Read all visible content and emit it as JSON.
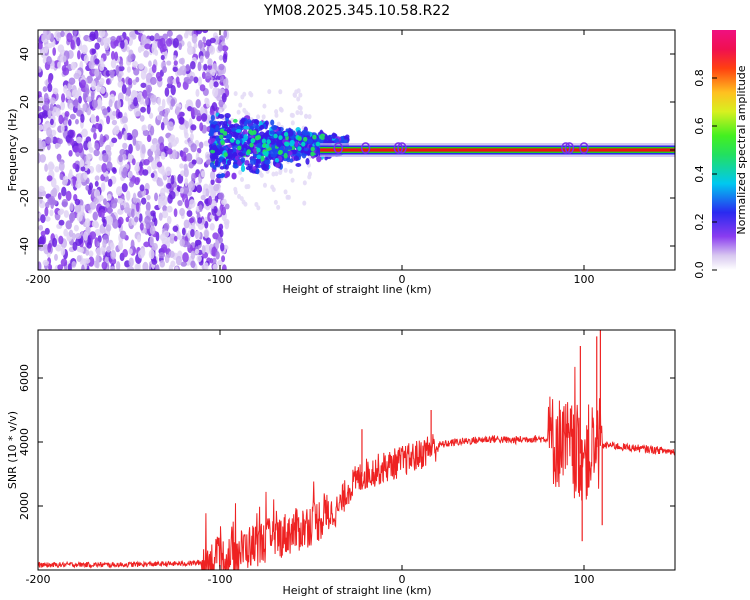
{
  "title": "YM08.2025.345.10.58.R22",
  "colors": {
    "snr_line": "#ee2222",
    "ridge_red": "#ee1111",
    "ridge_green": "#22cc22",
    "frame": "#000000"
  },
  "chart_data": [
    {
      "type": "heatmap",
      "name": "spectrogram",
      "xlabel": "Height of straight line (km)",
      "ylabel": "Frequency (Hz)",
      "xlim": [
        -200,
        150
      ],
      "ylim": [
        -50,
        50
      ],
      "xticks": [
        -200,
        -100,
        0,
        100
      ],
      "yticks": [
        -40,
        -20,
        0,
        20,
        40
      ],
      "ridge": {
        "freq": 0,
        "from_km": -45,
        "to_km": 150
      },
      "noise_region_km": [
        -200,
        -100
      ],
      "transition_region_km": [
        -105,
        -30
      ],
      "colorbar": {
        "label": "Normalized spectral amplitude",
        "ticks": [
          0.0,
          0.2,
          0.4,
          0.6,
          0.8
        ],
        "tick_labels": [
          "0.0",
          "0.2",
          "0.4",
          "0.6",
          "0.8"
        ],
        "range": [
          0,
          1
        ]
      }
    },
    {
      "type": "line",
      "name": "snr",
      "xlabel": "Height of straight line (km)",
      "ylabel": "SNR (10 * v/v)",
      "xlim": [
        -200,
        150
      ],
      "ylim": [
        0,
        7500
      ],
      "xticks": [
        -200,
        -100,
        0,
        100
      ],
      "yticks": [
        2000,
        4000,
        6000
      ],
      "x": [
        -200,
        -180,
        -160,
        -140,
        -120,
        -105,
        -95,
        -85,
        -75,
        -65,
        -55,
        -45,
        -35,
        -30,
        -25,
        -20,
        -15,
        -10,
        -5,
        0,
        5,
        10,
        15,
        20,
        25,
        30,
        40,
        50,
        60,
        70,
        80,
        85,
        90,
        95,
        100,
        105,
        110,
        115,
        120,
        130,
        140,
        150
      ],
      "y": [
        150,
        170,
        160,
        180,
        200,
        250,
        400,
        700,
        900,
        1100,
        1300,
        1600,
        1900,
        2500,
        2800,
        3000,
        3100,
        3200,
        3300,
        3400,
        3500,
        3600,
        3800,
        3900,
        3950,
        4000,
        4050,
        4100,
        4050,
        4100,
        4100,
        4000,
        3900,
        3700,
        3600,
        3800,
        3900,
        3900,
        3850,
        3800,
        3750,
        3700
      ],
      "noise_amplitude_km": [
        [
          -200,
          -110,
          80
        ],
        [
          -110,
          -40,
          700
        ],
        [
          -40,
          20,
          500
        ],
        [
          20,
          80,
          120
        ],
        [
          80,
          110,
          1500
        ],
        [
          110,
          150,
          120
        ]
      ],
      "spikes": [
        {
          "x": -22,
          "y": 4400
        },
        {
          "x": 16,
          "y": 5000
        },
        {
          "x": 98,
          "y": 7000
        },
        {
          "x": 107,
          "y": 7300
        },
        {
          "x": 109,
          "y": 7500
        },
        {
          "x": 99,
          "y": 900
        },
        {
          "x": 110,
          "y": 1400
        }
      ]
    }
  ]
}
